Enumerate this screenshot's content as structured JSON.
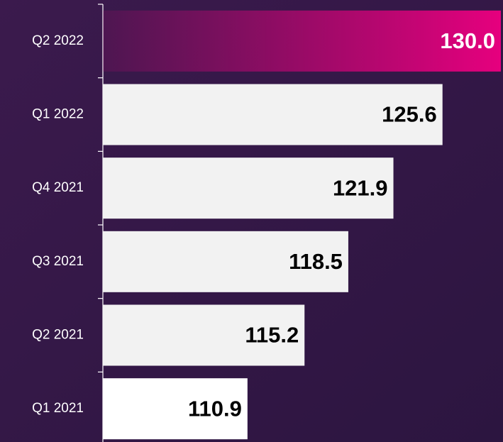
{
  "chart_data": {
    "type": "barh",
    "categories": [
      "Q2 2022",
      "Q1 2022",
      "Q4 2021",
      "Q3 2021",
      "Q2 2021",
      "Q1 2021"
    ],
    "values": [
      130.0,
      125.6,
      121.9,
      118.5,
      115.2,
      110.9
    ],
    "value_labels": [
      "130.0",
      "125.6",
      "121.9",
      "118.5",
      "115.2",
      "110.9"
    ],
    "colors": [
      "#e6007e",
      "#f2f2f2",
      "#f2f2f2",
      "#f2f2f2",
      "#f2f2f2",
      "#ffffff"
    ],
    "highlight": 0,
    "xlim": [
      100,
      130
    ]
  }
}
